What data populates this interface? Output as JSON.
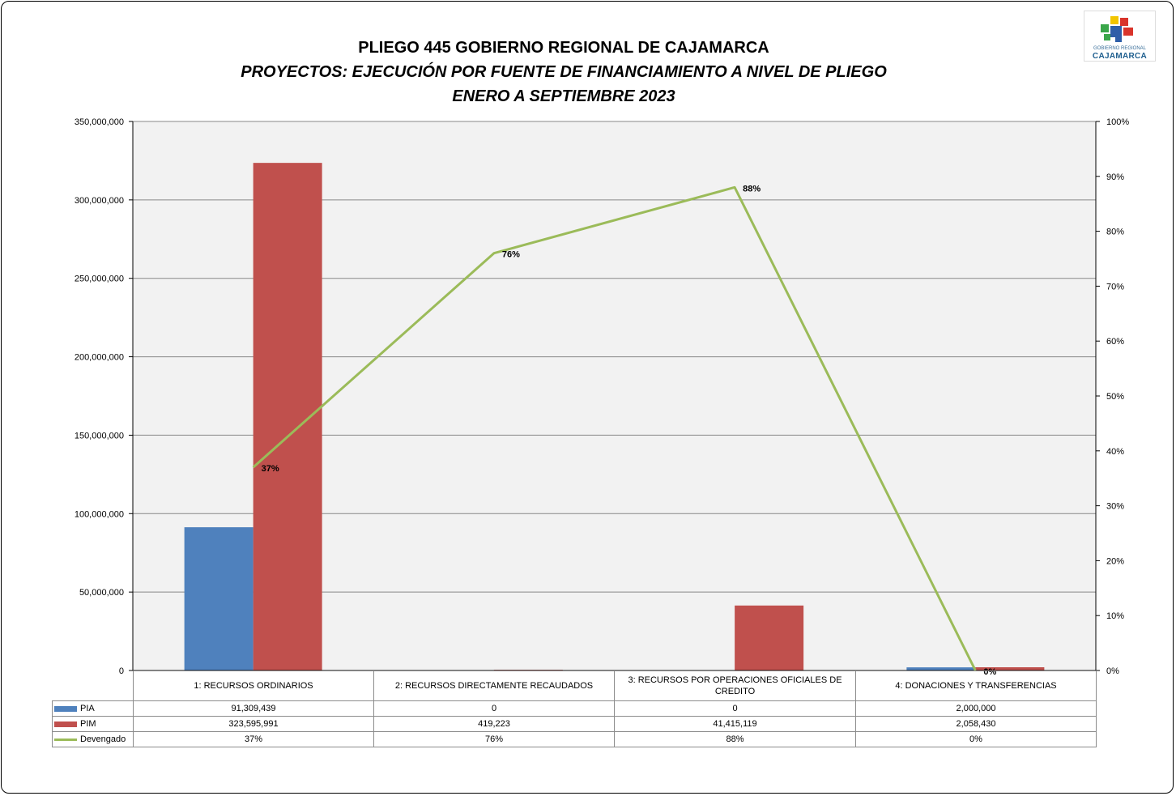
{
  "header": {
    "title": "PLIEGO 445 GOBIERNO REGIONAL DE CAJAMARCA",
    "subtitle": "PROYECTOS: EJECUCIÓN POR FUENTE DE FINANCIAMIENTO A NIVEL DE PLIEGO",
    "period": "ENERO A SEPTIEMBRE  2023"
  },
  "logo": {
    "small_text": "GOBIERNO REGIONAL",
    "name": "CAJAMARCA"
  },
  "colors": {
    "pia": "#4f81bd",
    "pim": "#c0504d",
    "devengado": "#9bbb59",
    "plot_bg": "#f2f2f2",
    "grid": "#888888"
  },
  "chart_data": {
    "type": "bar",
    "categories": [
      "1: RECURSOS ORDINARIOS",
      "2: RECURSOS DIRECTAMENTE RECAUDADOS",
      "3: RECURSOS POR OPERACIONES OFICIALES DE CREDITO",
      "4: DONACIONES Y TRANSFERENCIAS"
    ],
    "series": [
      {
        "name": "PIA",
        "type": "bar",
        "axis": "left",
        "values": [
          91309439,
          0,
          0,
          2000000
        ],
        "display": [
          "91,309,439",
          "0",
          "0",
          "2,000,000"
        ]
      },
      {
        "name": "PIM",
        "type": "bar",
        "axis": "left",
        "values": [
          323595991,
          419223,
          41415119,
          2058430
        ],
        "display": [
          "323,595,991",
          "419,223",
          "41,415,119",
          "2,058,430"
        ]
      },
      {
        "name": "Devengado",
        "type": "line",
        "axis": "right",
        "values": [
          37,
          76,
          88,
          0
        ],
        "display": [
          "37%",
          "76%",
          "88%",
          "0%"
        ]
      }
    ],
    "ylim": [
      0,
      350000000
    ],
    "y_ticks": [
      "0",
      "50,000,000",
      "100,000,000",
      "150,000,000",
      "200,000,000",
      "250,000,000",
      "300,000,000",
      "350,000,000"
    ],
    "y2lim": [
      0,
      100
    ],
    "y2_ticks": [
      "0%",
      "10%",
      "20%",
      "30%",
      "40%",
      "50%",
      "60%",
      "70%",
      "80%",
      "90%",
      "100%"
    ],
    "grid": true,
    "legend": "data-table"
  }
}
